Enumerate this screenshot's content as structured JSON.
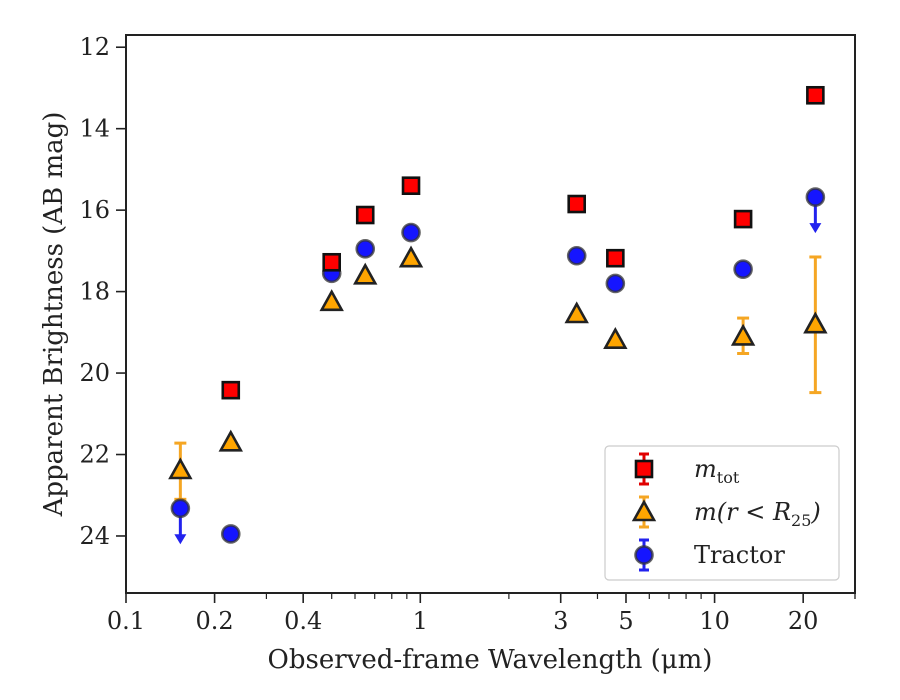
{
  "chart_data": {
    "type": "scatter",
    "xlabel": "Observed-frame Wavelength (μm)",
    "ylabel": "Apparent Brightness (AB mag)",
    "xscale": "log",
    "xlim": [
      0.1,
      30
    ],
    "ylim": [
      25.4,
      11.7
    ],
    "y_inverted": true,
    "grid": false,
    "legend_position": "lower-right",
    "xticks": [
      {
        "value": 0.1,
        "label": "0.1"
      },
      {
        "value": 0.2,
        "label": "0.2"
      },
      {
        "value": 0.4,
        "label": "0.4"
      },
      {
        "value": 1,
        "label": "1"
      },
      {
        "value": 3,
        "label": "3"
      },
      {
        "value": 5,
        "label": "5"
      },
      {
        "value": 10,
        "label": "10"
      },
      {
        "value": 20,
        "label": "20"
      }
    ],
    "yticks": [
      {
        "value": 12,
        "label": "12"
      },
      {
        "value": 14,
        "label": "14"
      },
      {
        "value": 16,
        "label": "16"
      },
      {
        "value": 18,
        "label": "18"
      },
      {
        "value": 20,
        "label": "20"
      },
      {
        "value": 22,
        "label": "22"
      },
      {
        "value": 24,
        "label": "24"
      }
    ],
    "series": [
      {
        "name": "m_tot",
        "legend_main": "m",
        "legend_sub": "tot",
        "marker": "square",
        "face_color": "#ff0000",
        "edge_color": "#111111",
        "errbar_color": "#e00000",
        "points": [
          {
            "x": 0.227,
            "y": 20.42
          },
          {
            "x": 0.5,
            "y": 17.28
          },
          {
            "x": 0.65,
            "y": 16.12
          },
          {
            "x": 0.93,
            "y": 15.4
          },
          {
            "x": 3.4,
            "y": 15.85
          },
          {
            "x": 4.6,
            "y": 17.18
          },
          {
            "x": 12.5,
            "y": 16.22
          },
          {
            "x": 22.0,
            "y": 13.18
          }
        ]
      },
      {
        "name": "m(r < R_25)",
        "legend_main": "m(r < R",
        "legend_sub": "25",
        "legend_tail": ")",
        "marker": "triangle",
        "face_color": "#ffa500",
        "edge_color": "#222222",
        "errbar_color": "#f5a623",
        "points": [
          {
            "x": 0.153,
            "y": 22.38,
            "err_lo": 22.35,
            "err_hi": 23.1,
            "err_top": 21.72
          },
          {
            "x": 0.227,
            "y": 21.7
          },
          {
            "x": 0.5,
            "y": 18.25
          },
          {
            "x": 0.65,
            "y": 17.6
          },
          {
            "x": 0.93,
            "y": 17.18
          },
          {
            "x": 3.4,
            "y": 18.55
          },
          {
            "x": 4.6,
            "y": 19.18
          },
          {
            "x": 12.5,
            "y": 19.1,
            "err_top": 18.65,
            "err_bot": 19.52
          },
          {
            "x": 22.0,
            "y": 18.8,
            "err_top": 17.15,
            "err_bot": 20.48
          }
        ]
      },
      {
        "name": "Tractor",
        "legend_main": "Tractor",
        "marker": "circle",
        "face_color": "#1515ff",
        "edge_color": "#333333",
        "errbar_color": "#2222ee",
        "points": [
          {
            "x": 0.153,
            "y": 23.32,
            "upper_limit": true
          },
          {
            "x": 0.227,
            "y": 23.95
          },
          {
            "x": 0.5,
            "y": 17.55
          },
          {
            "x": 0.65,
            "y": 16.95
          },
          {
            "x": 0.93,
            "y": 16.55
          },
          {
            "x": 3.4,
            "y": 17.12
          },
          {
            "x": 4.6,
            "y": 17.8
          },
          {
            "x": 12.5,
            "y": 17.45
          },
          {
            "x": 22.0,
            "y": 15.68,
            "upper_limit": true
          }
        ]
      }
    ]
  }
}
